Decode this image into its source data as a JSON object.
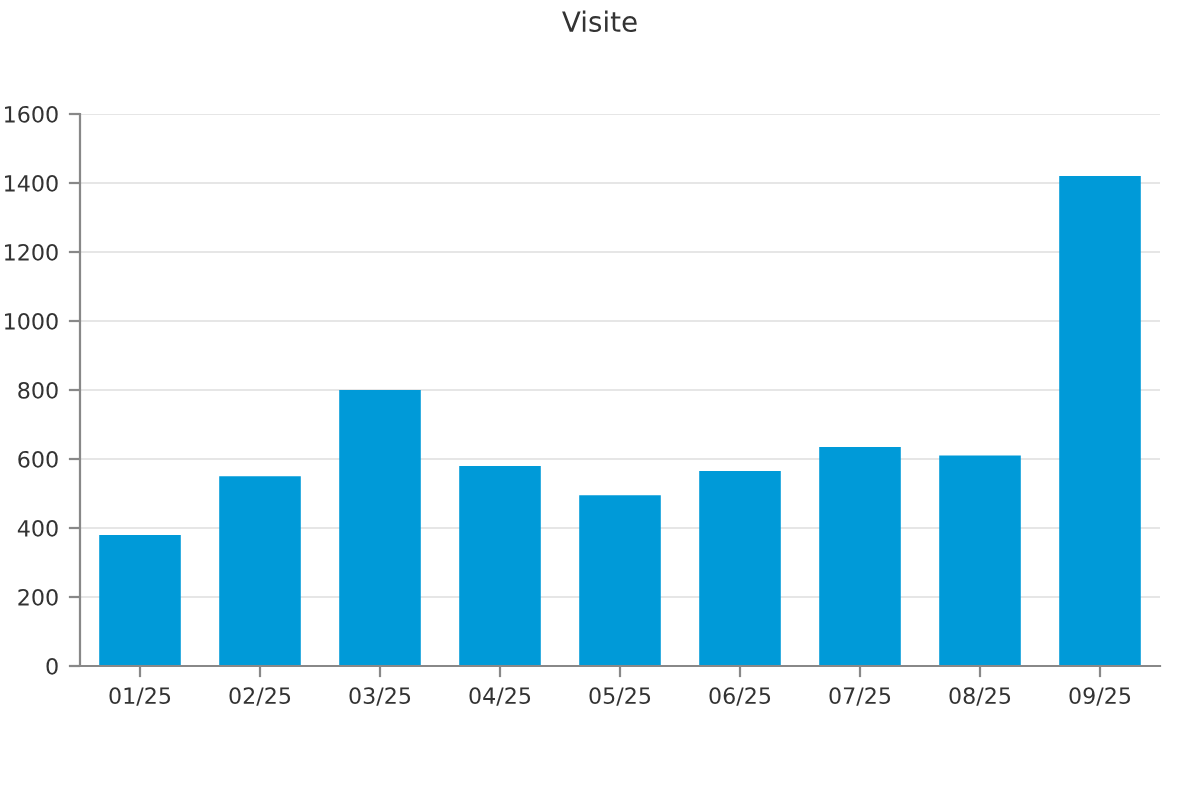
{
  "chart_data": {
    "type": "bar",
    "title": "Visite",
    "categories": [
      "01/25",
      "02/25",
      "03/25",
      "04/25",
      "05/25",
      "06/25",
      "07/25",
      "08/25",
      "09/25"
    ],
    "values": [
      380,
      550,
      800,
      580,
      495,
      565,
      635,
      610,
      1420
    ],
    "color": "#009ad8",
    "ylim": [
      0,
      1600
    ],
    "yticks": [
      0,
      200,
      400,
      600,
      800,
      1000,
      1200,
      1400,
      1600
    ],
    "grid": "y"
  }
}
